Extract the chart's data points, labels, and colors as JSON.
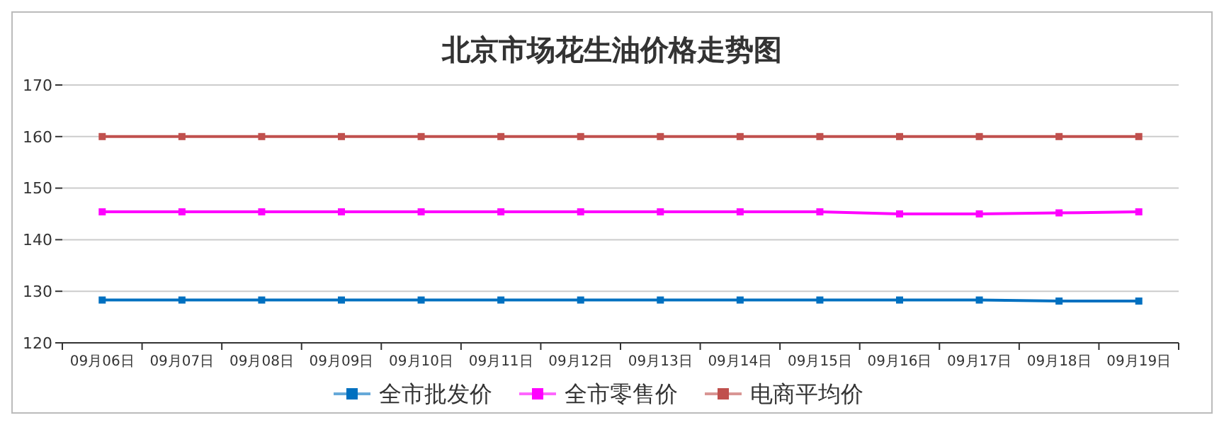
{
  "chart_data": {
    "type": "line",
    "title": "北京市场花生油价格走势图",
    "categories": [
      "09月06日",
      "09月07日",
      "09月08日",
      "09月09日",
      "09月10日",
      "09月11日",
      "09月12日",
      "09月13日",
      "09月14日",
      "09月15日",
      "09月16日",
      "09月17日",
      "09月18日",
      "09月19日"
    ],
    "series": [
      {
        "name": "全市批发价",
        "color": "#0070c0",
        "values": [
          128.3,
          128.3,
          128.3,
          128.3,
          128.3,
          128.3,
          128.3,
          128.3,
          128.3,
          128.3,
          128.3,
          128.3,
          128.1,
          128.1
        ]
      },
      {
        "name": "全市零售价",
        "color": "#ff00ff",
        "values": [
          145.4,
          145.4,
          145.4,
          145.4,
          145.4,
          145.4,
          145.4,
          145.4,
          145.4,
          145.4,
          145.0,
          145.0,
          145.2,
          145.4
        ]
      },
      {
        "name": "电商平均价",
        "color": "#c0504d",
        "values": [
          160,
          160,
          160,
          160,
          160,
          160,
          160,
          160,
          160,
          160,
          160,
          160,
          160,
          160
        ]
      }
    ],
    "ylim": [
      120,
      170
    ],
    "yticks": [
      120,
      130,
      140,
      150,
      160,
      170
    ],
    "grid": "y",
    "legend": "bottom",
    "marker": "square",
    "line_style": "solid"
  }
}
